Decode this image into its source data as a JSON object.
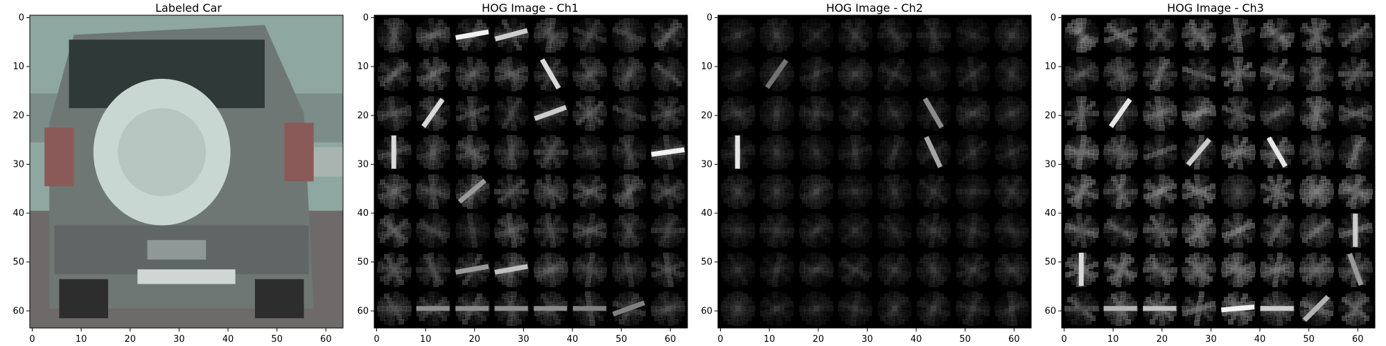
{
  "panels": [
    {
      "title": "Labeled Car",
      "image_kind": "photo",
      "image_description_icon": "car-photo",
      "x_ticks": [
        "0",
        "10",
        "20",
        "30",
        "40",
        "50",
        "60"
      ],
      "y_ticks": [
        "0",
        "10",
        "20",
        "30",
        "40",
        "50",
        "60"
      ]
    },
    {
      "title": "HOG Image - Ch1",
      "image_kind": "hog",
      "x_ticks": [
        "0",
        "10",
        "20",
        "30",
        "40",
        "50",
        "60"
      ],
      "y_ticks": [
        "0",
        "10",
        "20",
        "30",
        "40",
        "50",
        "60"
      ]
    },
    {
      "title": "HOG Image - Ch2",
      "image_kind": "hog",
      "x_ticks": [
        "0",
        "10",
        "20",
        "30",
        "40",
        "50",
        "60"
      ],
      "y_ticks": [
        "0",
        "10",
        "20",
        "30",
        "40",
        "50",
        "60"
      ]
    },
    {
      "title": "HOG Image - Ch3",
      "image_kind": "hog",
      "x_ticks": [
        "0",
        "10",
        "20",
        "30",
        "40",
        "50",
        "60"
      ],
      "y_ticks": [
        "0",
        "10",
        "20",
        "30",
        "40",
        "50",
        "60"
      ]
    }
  ],
  "colors": {
    "hog_background": "#000000",
    "hog_stroke": "#ffffff",
    "axis": "#000000",
    "car_sky": "#8ea7a0",
    "car_body": "#6f7775",
    "car_window": "#2f3a38",
    "car_tire": "#c9d7d2",
    "car_tail": "#8a5a58",
    "road": "#6e6a6a"
  }
}
